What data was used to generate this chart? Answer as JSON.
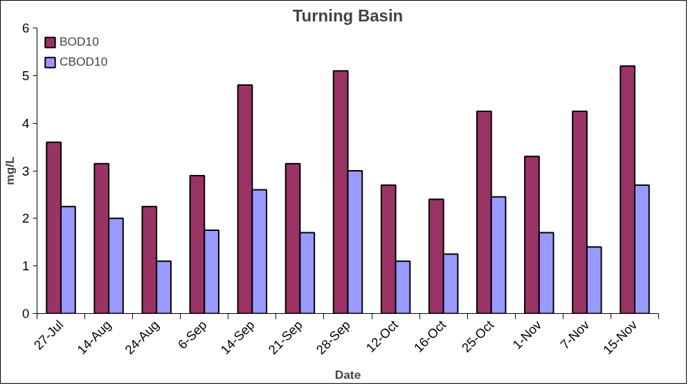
{
  "chart_data": {
    "type": "bar",
    "title": "Turning Basin",
    "xlabel": "Date",
    "ylabel": "mg/L",
    "categories": [
      "27-Jul",
      "14-Aug",
      "24-Aug",
      "6-Sep",
      "14-Sep",
      "21-Sep",
      "28-Sep",
      "12-Oct",
      "16-Oct",
      "25-Oct",
      "1-Nov",
      "7-Nov",
      "15-Nov"
    ],
    "series": [
      {
        "name": "BOD10",
        "color": "#993366",
        "values": [
          3.6,
          3.15,
          2.25,
          2.9,
          4.8,
          3.15,
          5.1,
          2.7,
          2.4,
          4.25,
          3.3,
          4.25,
          5.2
        ]
      },
      {
        "name": "CBOD10",
        "color": "#9999ff",
        "values": [
          2.25,
          2.0,
          1.1,
          1.75,
          2.6,
          1.7,
          3.0,
          1.1,
          1.25,
          2.45,
          1.7,
          1.4,
          2.7
        ]
      }
    ],
    "ylim": [
      0,
      6
    ],
    "yticks": [
      0,
      1,
      2,
      3,
      4,
      5,
      6
    ],
    "grid": false,
    "legend": "top left"
  }
}
